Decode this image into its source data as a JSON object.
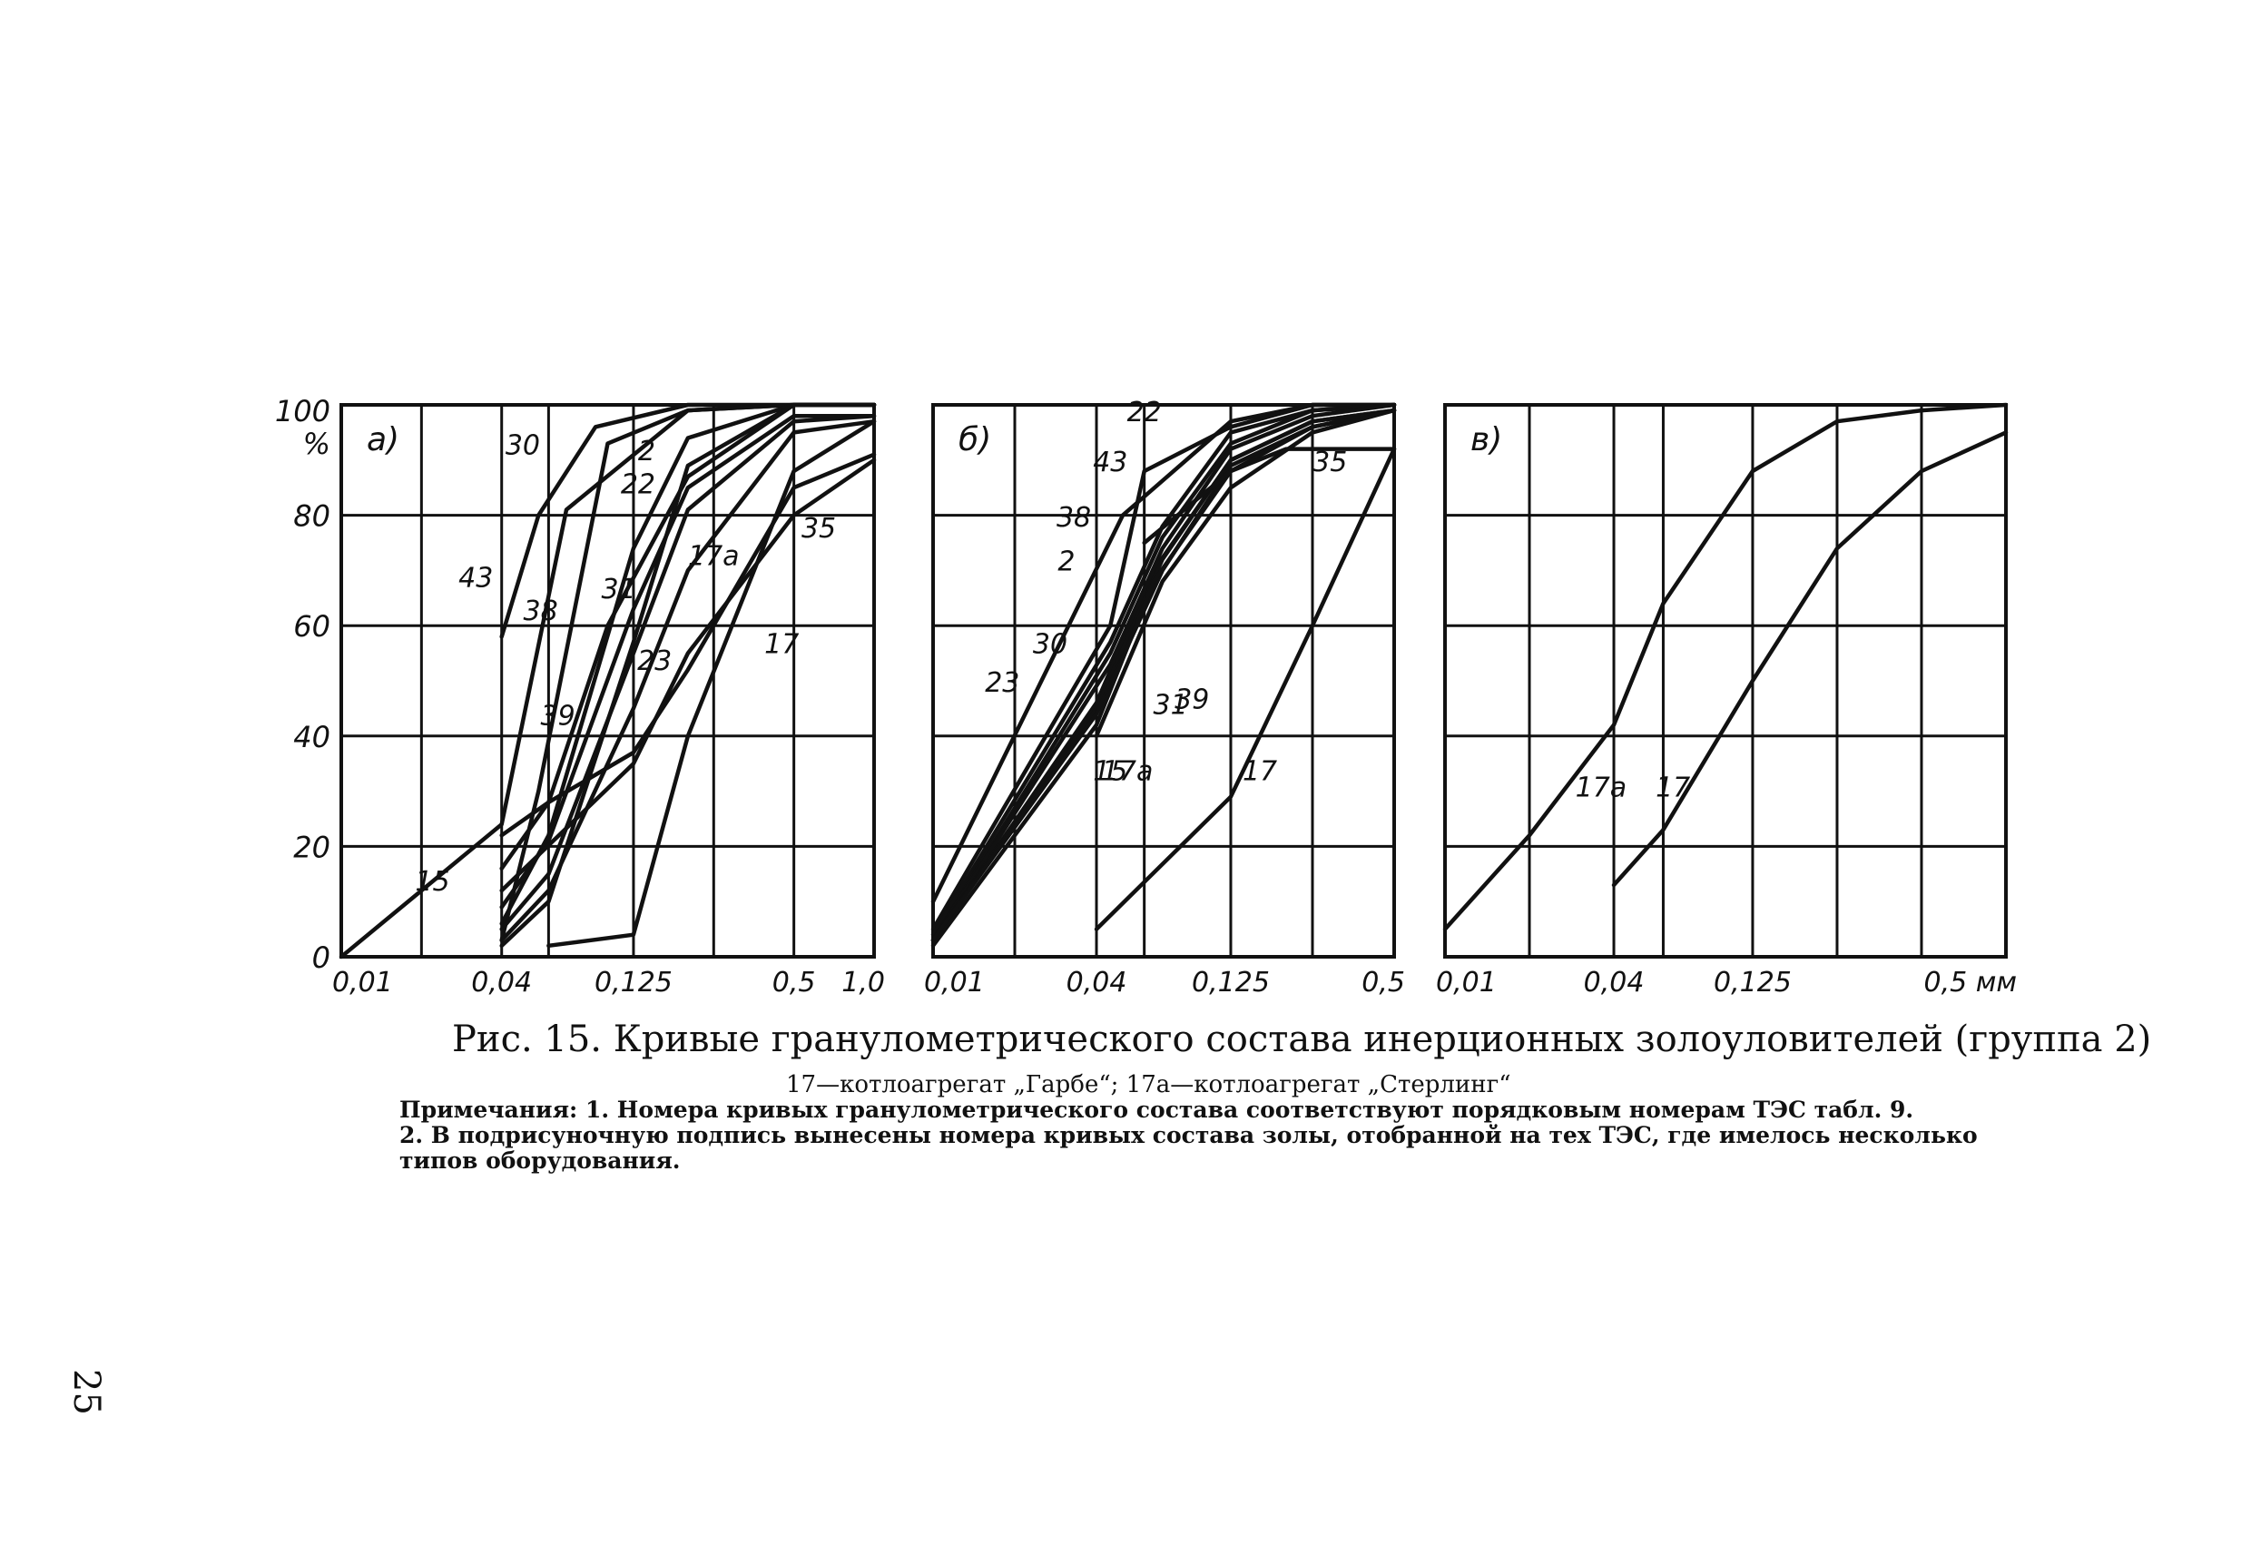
{
  "figure": {
    "caption": "Рис. 15. Кривые гранулометрического состава инерционных золоуловителей (группа 2)",
    "legend_line": "17—котлоагрегат „Гарбе“; 17а—котлоагрегат „Стерлинг“",
    "note_line_1": "Примечания: 1. Номера кривых гранулометрического состава соответствуют порядковым номерам ТЭС табл. 9.",
    "note_line_2": "2. В подрисуночную подпись вынесены номера кривых состава золы, отобранной на тех ТЭС, где имелось несколько",
    "note_line_3": "типов оборудования.",
    "page_number": "25",
    "ytick_labels": [
      "0",
      "20",
      "40",
      "60",
      "80",
      "100"
    ],
    "yunit": "%"
  },
  "chart_data": [
    {
      "type": "line",
      "panel_label": "а)",
      "x_scale": "log",
      "xlim": [
        0.01,
        1.0
      ],
      "ylim": [
        0,
        100
      ],
      "xtick_labels": [
        "0,01",
        "0,04",
        "0,125",
        "0,5",
        "1,0"
      ],
      "grid": true,
      "series": [
        {
          "name": "43",
          "x": [
            0.04,
            0.055,
            0.09,
            0.2,
            0.5,
            1.0
          ],
          "y": [
            58,
            80,
            96,
            100,
            100,
            100
          ]
        },
        {
          "name": "15",
          "x": [
            0.01,
            0.04,
            0.07,
            0.2,
            0.5,
            1.0
          ],
          "y": [
            0,
            24,
            81,
            99,
            100,
            100
          ]
        },
        {
          "name": "30",
          "x": [
            0.04,
            0.055,
            0.1,
            0.2,
            0.5,
            1.0
          ],
          "y": [
            3,
            30,
            93,
            99,
            100,
            100
          ]
        },
        {
          "name": "2",
          "x": [
            0.04,
            0.06,
            0.125,
            0.2,
            0.5,
            1.0
          ],
          "y": [
            6,
            22,
            74,
            94,
            100,
            100
          ]
        },
        {
          "name": "38",
          "x": [
            0.04,
            0.06,
            0.1,
            0.2,
            0.5,
            1.0
          ],
          "y": [
            16,
            28,
            60,
            87,
            100,
            100
          ]
        },
        {
          "name": "22",
          "x": [
            0.04,
            0.06,
            0.125,
            0.2,
            0.5,
            1.0
          ],
          "y": [
            2,
            10,
            57,
            89,
            100,
            100
          ]
        },
        {
          "name": "39",
          "x": [
            0.04,
            0.06,
            0.125,
            0.2,
            0.5,
            1.0
          ],
          "y": [
            9,
            21,
            63,
            85,
            98,
            98
          ]
        },
        {
          "name": "31",
          "x": [
            0.04,
            0.06,
            0.125,
            0.2,
            0.5,
            1.0
          ],
          "y": [
            5,
            15,
            55,
            81,
            97,
            98
          ]
        },
        {
          "name": "23",
          "x": [
            0.04,
            0.06,
            0.125,
            0.2,
            0.5,
            1.0
          ],
          "y": [
            3,
            12,
            45,
            70,
            95,
            97
          ]
        },
        {
          "name": "17а",
          "x": [
            0.04,
            0.06,
            0.125,
            0.2,
            0.5,
            1.0
          ],
          "y": [
            22,
            28,
            37,
            52,
            85,
            91
          ]
        },
        {
          "name": "35",
          "x": [
            0.04,
            0.125,
            0.2,
            0.5,
            1.0
          ],
          "y": [
            12,
            35,
            55,
            80,
            90
          ]
        },
        {
          "name": "17",
          "x": [
            0.06,
            0.125,
            0.2,
            0.5,
            1.0
          ],
          "y": [
            2,
            4,
            40,
            88,
            97
          ]
        }
      ]
    },
    {
      "type": "line",
      "panel_label": "б)",
      "x_scale": "log",
      "xlim": [
        0.01,
        0.5
      ],
      "ylim": [
        0,
        100
      ],
      "xtick_labels": [
        "0,01",
        "0,04",
        "0,125",
        "0,5"
      ],
      "grid": true,
      "series": [
        {
          "name": "22",
          "x": [
            0.01,
            0.05,
            0.125,
            0.25,
            0.5
          ],
          "y": [
            10,
            80,
            97,
            100,
            100
          ]
        },
        {
          "name": "43",
          "x": [
            0.01,
            0.045,
            0.06,
            0.125,
            0.25,
            0.5
          ],
          "y": [
            5,
            60,
            88,
            96,
            100,
            100
          ]
        },
        {
          "name": "38",
          "x": [
            0.01,
            0.045,
            0.07,
            0.125,
            0.25,
            0.5
          ],
          "y": [
            4,
            57,
            78,
            95,
            99,
            100
          ]
        },
        {
          "name": "2",
          "x": [
            0.01,
            0.045,
            0.07,
            0.125,
            0.25,
            0.5
          ],
          "y": [
            3,
            55,
            76,
            93,
            99,
            100
          ]
        },
        {
          "name": "30",
          "x": [
            0.01,
            0.045,
            0.07,
            0.125,
            0.25,
            0.5
          ],
          "y": [
            3,
            53,
            74,
            92,
            98,
            100
          ]
        },
        {
          "name": "23",
          "x": [
            0.01,
            0.04,
            0.065,
            0.125,
            0.25,
            0.5
          ],
          "y": [
            3,
            46,
            70,
            90,
            97,
            99
          ]
        },
        {
          "name": "39",
          "x": [
            0.01,
            0.04,
            0.07,
            0.125,
            0.25,
            0.5
          ],
          "y": [
            3,
            45,
            72,
            90,
            97,
            99
          ]
        },
        {
          "name": "31",
          "x": [
            0.01,
            0.04,
            0.07,
            0.125,
            0.25,
            0.5
          ],
          "y": [
            3,
            44,
            70,
            89,
            96,
            99
          ]
        },
        {
          "name": "15",
          "x": [
            0.01,
            0.04,
            0.065,
            0.125,
            0.25,
            0.5
          ],
          "y": [
            2,
            42,
            68,
            88,
            96,
            99
          ]
        },
        {
          "name": "17а",
          "x": [
            0.04,
            0.07,
            0.125,
            0.25,
            0.5
          ],
          "y": [
            40,
            68,
            85,
            95,
            99
          ]
        },
        {
          "name": "35",
          "x": [
            0.06,
            0.125,
            0.2,
            0.5
          ],
          "y": [
            75,
            88,
            92,
            92
          ]
        },
        {
          "name": "17",
          "x": [
            0.04,
            0.125,
            0.25,
            0.5
          ],
          "y": [
            5,
            29,
            60,
            92
          ]
        }
      ]
    },
    {
      "type": "line",
      "panel_label": "в)",
      "x_scale": "log",
      "xlim": [
        0.01,
        1.0
      ],
      "ylim": [
        0,
        100
      ],
      "xtick_labels": [
        "0,01",
        "0,04",
        "0,125",
        "0,5 мм"
      ],
      "grid": true,
      "series": [
        {
          "name": "17а",
          "x": [
            0.01,
            0.02,
            0.04,
            0.06,
            0.125,
            0.25,
            0.5,
            1.0
          ],
          "y": [
            5,
            22,
            42,
            64,
            88,
            97,
            99,
            100
          ]
        },
        {
          "name": "17",
          "x": [
            0.04,
            0.06,
            0.125,
            0.25,
            0.5,
            1.0
          ],
          "y": [
            13,
            23,
            50,
            74,
            88,
            95
          ]
        }
      ]
    }
  ]
}
